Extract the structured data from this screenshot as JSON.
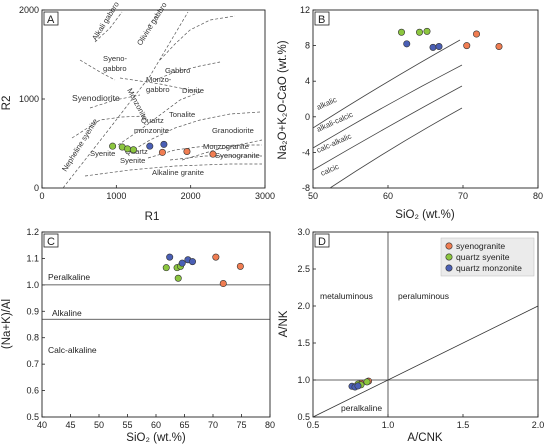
{
  "chart_data": [
    {
      "type": "scatter",
      "panel": "A",
      "xlabel": "R1",
      "ylabel": "R2",
      "xlim": [
        0,
        3000
      ],
      "ylim": [
        0,
        2000
      ],
      "xticks": [
        "0",
        "1000",
        "2000",
        "3000"
      ],
      "yticks": [
        "0",
        "1000",
        "2000"
      ],
      "field_labels": [
        "Alkali gabbro",
        "Olivine gabbro",
        "Syeno-",
        "gabbro",
        "Gabbro",
        "Monzo-",
        "gabbro",
        "Diorite",
        "Syenodiorite",
        "Monzonite",
        "Tonalite",
        "Quartz",
        "monzonite",
        "Granodiorite",
        "Nepheline syenite",
        "Syenite",
        "Quartz",
        "Syenite",
        "Monzogranite",
        "Syenogranite",
        "Alkaline granite"
      ],
      "series": [
        {
          "name": "syenogranite",
          "color": "#f07d52",
          "points": [
            [
              1620,
              400
            ],
            [
              1950,
              410
            ],
            [
              2300,
              380
            ]
          ]
        },
        {
          "name": "quartz syenite",
          "color": "#8cc63f",
          "points": [
            [
              950,
              470
            ],
            [
              1080,
              460
            ],
            [
              1150,
              440
            ],
            [
              1230,
              430
            ]
          ]
        },
        {
          "name": "quartz monzonite",
          "color": "#4a5fb5",
          "points": [
            [
              1450,
              470
            ],
            [
              1640,
              490
            ]
          ]
        }
      ]
    },
    {
      "type": "scatter",
      "panel": "B",
      "xlabel": "SiO₂ (wt.%)",
      "ylabel": "Na₂O+K₂O-CaO (wt.%)",
      "xlim": [
        50,
        80
      ],
      "ylim": [
        -8,
        12
      ],
      "xticks": [
        "50",
        "60",
        "70",
        "80"
      ],
      "yticks": [
        "-8",
        "-4",
        "0",
        "4",
        "8",
        "12"
      ],
      "field_labels": [
        "alkalic",
        "alkali-calcic",
        "calc-alkalic",
        "calcic"
      ],
      "series": [
        {
          "name": "syenogranite",
          "color": "#f07d52",
          "points": [
            [
              70.5,
              8.0
            ],
            [
              71.8,
              9.3
            ],
            [
              74.8,
              7.9
            ]
          ]
        },
        {
          "name": "quartz syenite",
          "color": "#8cc63f",
          "points": [
            [
              61.8,
              9.5
            ],
            [
              64.2,
              9.5
            ],
            [
              65.2,
              9.6
            ]
          ]
        },
        {
          "name": "quartz monzonite",
          "color": "#4a5fb5",
          "points": [
            [
              62.5,
              8.2
            ],
            [
              66.0,
              7.8
            ],
            [
              66.8,
              7.9
            ]
          ]
        }
      ]
    },
    {
      "type": "scatter",
      "panel": "C",
      "xlabel": "SiO₂ (wt.%)",
      "ylabel": "(Na+K)/Al",
      "xlim": [
        40,
        80
      ],
      "ylim": [
        0.5,
        1.2
      ],
      "xticks": [
        "40",
        "45",
        "50",
        "55",
        "60",
        "65",
        "70",
        "75",
        "80"
      ],
      "yticks": [
        "0.5",
        "0.6",
        "0.7",
        "0.8",
        "0.9",
        "1.0",
        "1.1",
        "1.2"
      ],
      "field_labels": [
        "Peralkaline",
        "Alkaline",
        "Calc-alkaline"
      ],
      "series": [
        {
          "name": "syenogranite",
          "color": "#f07d52",
          "points": [
            [
              70.5,
              1.105
            ],
            [
              71.8,
              1.005
            ],
            [
              74.8,
              1.07
            ]
          ]
        },
        {
          "name": "quartz syenite",
          "color": "#8cc63f",
          "points": [
            [
              61.8,
              1.065
            ],
            [
              63.7,
              1.065
            ],
            [
              64.3,
              1.07
            ],
            [
              63.9,
              1.025
            ]
          ]
        },
        {
          "name": "quartz monzonite",
          "color": "#4a5fb5",
          "points": [
            [
              62.4,
              1.105
            ],
            [
              65.6,
              1.095
            ],
            [
              66.4,
              1.088
            ],
            [
              64.6,
              1.082
            ]
          ]
        }
      ]
    },
    {
      "type": "scatter",
      "panel": "D",
      "xlabel": "A/CNK",
      "ylabel": "A/NK",
      "xlim": [
        0.5,
        2.0
      ],
      "ylim": [
        0.5,
        3.0
      ],
      "xticks": [
        "0.5",
        "1.0",
        "1.5",
        "2.0"
      ],
      "yticks": [
        "0.5",
        "1.0",
        "1.5",
        "2.0",
        "2.5",
        "3.0"
      ],
      "field_labels": [
        "metaluminous",
        "peraluminous",
        "peralkaline"
      ],
      "legend_position": "top-right",
      "series": [
        {
          "name": "syenogranite",
          "color": "#f07d52",
          "points": [
            [
              0.87,
              0.985
            ],
            [
              0.82,
              0.955
            ]
          ]
        },
        {
          "name": "quartz syenite",
          "color": "#8cc63f",
          "points": [
            [
              0.86,
              0.975
            ],
            [
              0.8,
              0.945
            ],
            [
              0.82,
              0.935
            ]
          ]
        },
        {
          "name": "quartz monzonite",
          "color": "#4a5fb5",
          "points": [
            [
              0.76,
              0.915
            ],
            [
              0.78,
              0.905
            ],
            [
              0.8,
              0.92
            ]
          ]
        }
      ]
    }
  ],
  "panels": {
    "A": {
      "tag": "A"
    },
    "B": {
      "tag": "B"
    },
    "C": {
      "tag": "C"
    },
    "D": {
      "tag": "D"
    }
  },
  "legend": {
    "items": [
      "syenogranite",
      "quartz syenite",
      "quartz monzonite"
    ],
    "colors": [
      "#f07d52",
      "#8cc63f",
      "#4a5fb5"
    ]
  }
}
